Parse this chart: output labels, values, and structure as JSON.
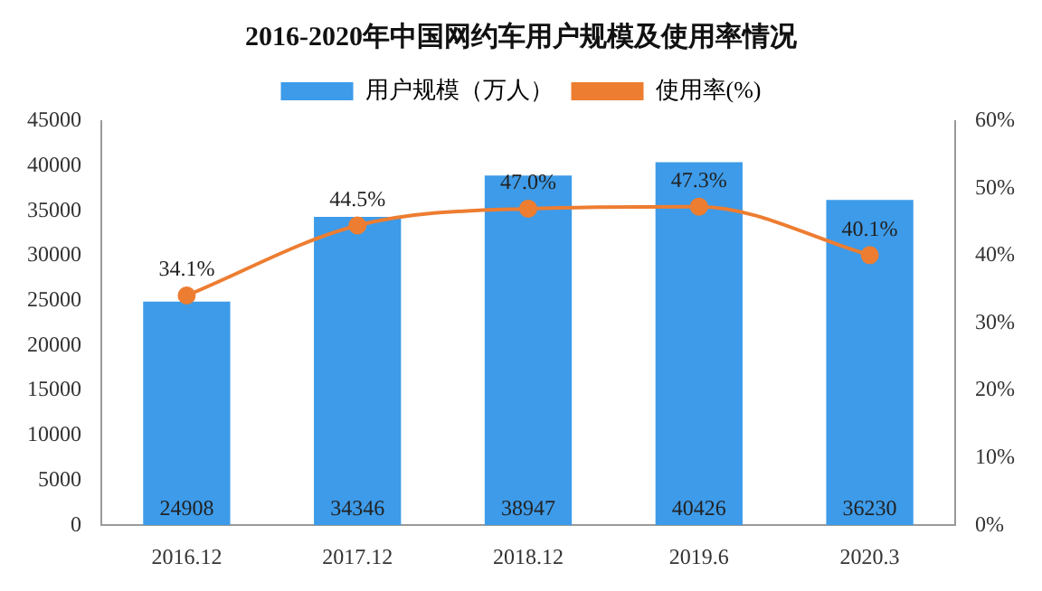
{
  "chart_data": {
    "type": "bar",
    "title": "2016-2020年中国网约车用户规模及使用率情况",
    "categories": [
      "2016.12",
      "2017.12",
      "2018.12",
      "2019.6",
      "2020.3"
    ],
    "series": [
      {
        "name": "用户规模（万人）",
        "type": "bar",
        "color": "#3d9be9",
        "values": [
          24908,
          34346,
          38947,
          40426,
          36230
        ],
        "value_labels": [
          "24908",
          "34346",
          "38947",
          "40426",
          "36230"
        ]
      },
      {
        "name": "使用率(%)",
        "type": "line",
        "axis": "y2",
        "color": "#ed7d31",
        "marker": "circle",
        "values": [
          34.1,
          44.5,
          47.0,
          47.3,
          40.1
        ],
        "value_labels": [
          "34.1%",
          "44.5%",
          "47.0%",
          "47.3%",
          "40.1%"
        ]
      }
    ],
    "ylim": [
      0,
      45000
    ],
    "yticks": [
      0,
      5000,
      10000,
      15000,
      20000,
      25000,
      30000,
      35000,
      40000,
      45000
    ],
    "y2lim": [
      0,
      60
    ],
    "y2ticks": [
      {
        "value": 0,
        "label": "0%"
      },
      {
        "value": 10,
        "label": "10%"
      },
      {
        "value": 20,
        "label": "20%"
      },
      {
        "value": 30,
        "label": "30%"
      },
      {
        "value": 40,
        "label": "40%"
      },
      {
        "value": 50,
        "label": "50%"
      },
      {
        "value": 60,
        "label": "60%"
      }
    ],
    "legend": "top",
    "grid": false
  }
}
